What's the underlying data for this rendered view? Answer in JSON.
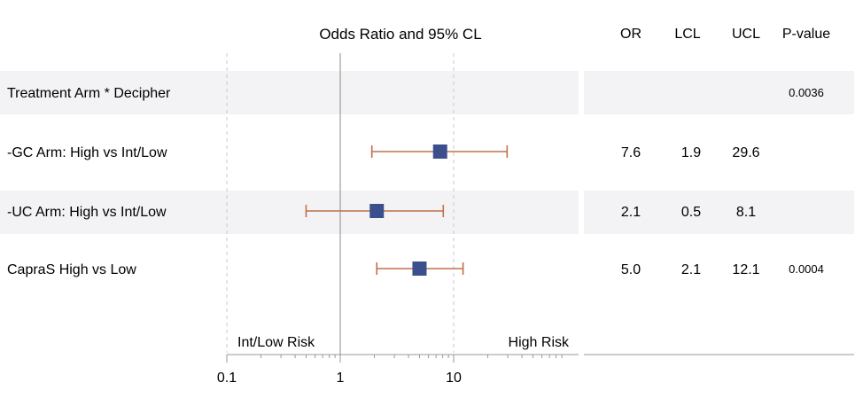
{
  "chart_data": {
    "type": "forest",
    "title": "Odds Ratio and 95% CL",
    "x_scale": "log",
    "xlim": [
      0.1,
      100
    ],
    "x_ticks": [
      "0.1",
      "1",
      "10"
    ],
    "x_tick_values": [
      0.1,
      1,
      10
    ],
    "reference_line": 1,
    "dashed_reference_lines": [
      0.1,
      10
    ],
    "left_annotation": "Int/Low Risk",
    "right_annotation": "High Risk",
    "columns": [
      "OR",
      "LCL",
      "UCL",
      "P-value"
    ],
    "rows": [
      {
        "label": "Treatment Arm * Decipher",
        "or": null,
        "lcl": null,
        "ucl": null,
        "or_text": "",
        "lcl_text": "",
        "ucl_text": "",
        "p_text": "0.0036",
        "shaded": true
      },
      {
        "label": "-GC Arm: High vs Int/Low",
        "or": 7.6,
        "lcl": 1.9,
        "ucl": 29.6,
        "or_text": "7.6",
        "lcl_text": "1.9",
        "ucl_text": "29.6",
        "p_text": "",
        "shaded": false
      },
      {
        "label": "-UC Arm: High vs Int/Low",
        "or": 2.1,
        "lcl": 0.5,
        "ucl": 8.1,
        "or_text": "2.1",
        "lcl_text": "0.5",
        "ucl_text": "8.1",
        "p_text": "",
        "shaded": true
      },
      {
        "label": "CapraS High vs Low",
        "or": 5.0,
        "lcl": 2.1,
        "ucl": 12.1,
        "or_text": "5.0",
        "lcl_text": "2.1",
        "ucl_text": "12.1",
        "p_text": "0.0004",
        "shaded": false
      }
    ],
    "colors": {
      "marker": "#3b4f8c",
      "ci_line": "#c0704a",
      "row_shade": "#f3f3f6",
      "reference": "#888888",
      "dashed": "#c8c8c8",
      "axis": "#999999"
    }
  }
}
